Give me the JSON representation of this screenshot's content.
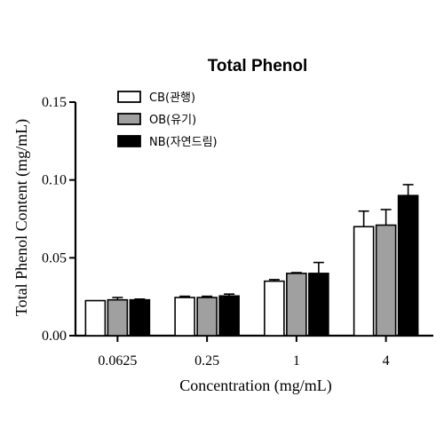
{
  "chart_data": {
    "type": "bar",
    "title": "Total Phenol",
    "xlabel": "Concentration (mg/mL)",
    "ylabel": "Total Phenol Content (mg/mL)",
    "categories": [
      "0.0625",
      "0.25",
      "1",
      "4"
    ],
    "ylim": [
      0,
      0.15
    ],
    "yticks": [
      "0.00",
      "0.05",
      "0.10",
      "0.15"
    ],
    "ytick_values": [
      0,
      0.05,
      0.1,
      0.15
    ],
    "legend_position": "top-left",
    "grid": false,
    "series": [
      {
        "name": "CB(관행)",
        "color": "#ffffff",
        "values": [
          0.0225,
          0.0245,
          0.035,
          0.07
        ],
        "errors": [
          0.0,
          0.0008,
          0.001,
          0.01
        ]
      },
      {
        "name": "OB(유기)",
        "color": "#a0a0a0",
        "values": [
          0.023,
          0.0245,
          0.04,
          0.071
        ],
        "errors": [
          0.0015,
          0.0008,
          0.0005,
          0.01
        ]
      },
      {
        "name": "NB(자연드림)",
        "color": "#000000",
        "values": [
          0.023,
          0.0255,
          0.04,
          0.09
        ],
        "errors": [
          0.0005,
          0.0012,
          0.007,
          0.007
        ]
      }
    ]
  }
}
